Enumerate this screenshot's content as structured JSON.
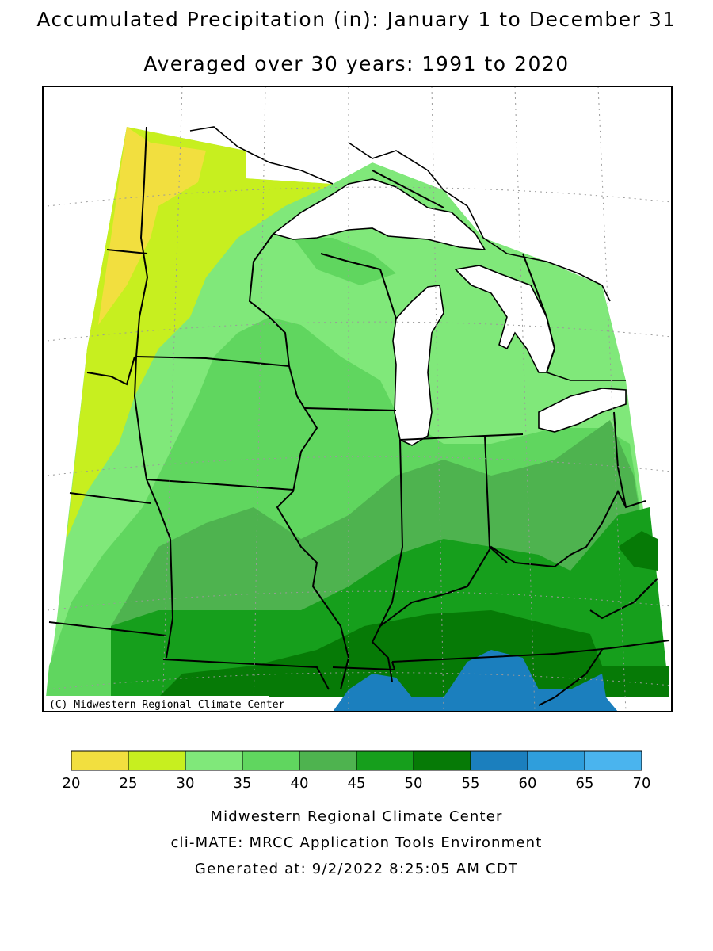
{
  "title": "Accumulated Precipitation (in): January 1 to December 31",
  "subtitle": "Averaged over 30 years: 1991 to 2020",
  "copyright": "(C) Midwestern Regional Climate Center",
  "legend": {
    "ticks": [
      "20",
      "25",
      "30",
      "35",
      "40",
      "45",
      "50",
      "55",
      "60",
      "65",
      "70"
    ],
    "bins": [
      {
        "range": "20-25",
        "color": "#f2df3f"
      },
      {
        "range": "25-30",
        "color": "#c7ef1f"
      },
      {
        "range": "30-35",
        "color": "#80e87a"
      },
      {
        "range": "35-40",
        "color": "#60d65f"
      },
      {
        "range": "40-45",
        "color": "#4eb34f"
      },
      {
        "range": "45-50",
        "color": "#169f1c"
      },
      {
        "range": "50-55",
        "color": "#067a06"
      },
      {
        "range": "55-60",
        "color": "#1b7fbe"
      },
      {
        "range": "60-65",
        "color": "#2f9edc"
      },
      {
        "range": "65-70",
        "color": "#4ab4ee"
      }
    ]
  },
  "footer": {
    "line1": "Midwestern Regional Climate Center",
    "line2": "cli-MATE: MRCC Application Tools Environment",
    "line3": "Generated at: 9/2/2022 8:25:05 AM CDT"
  }
}
